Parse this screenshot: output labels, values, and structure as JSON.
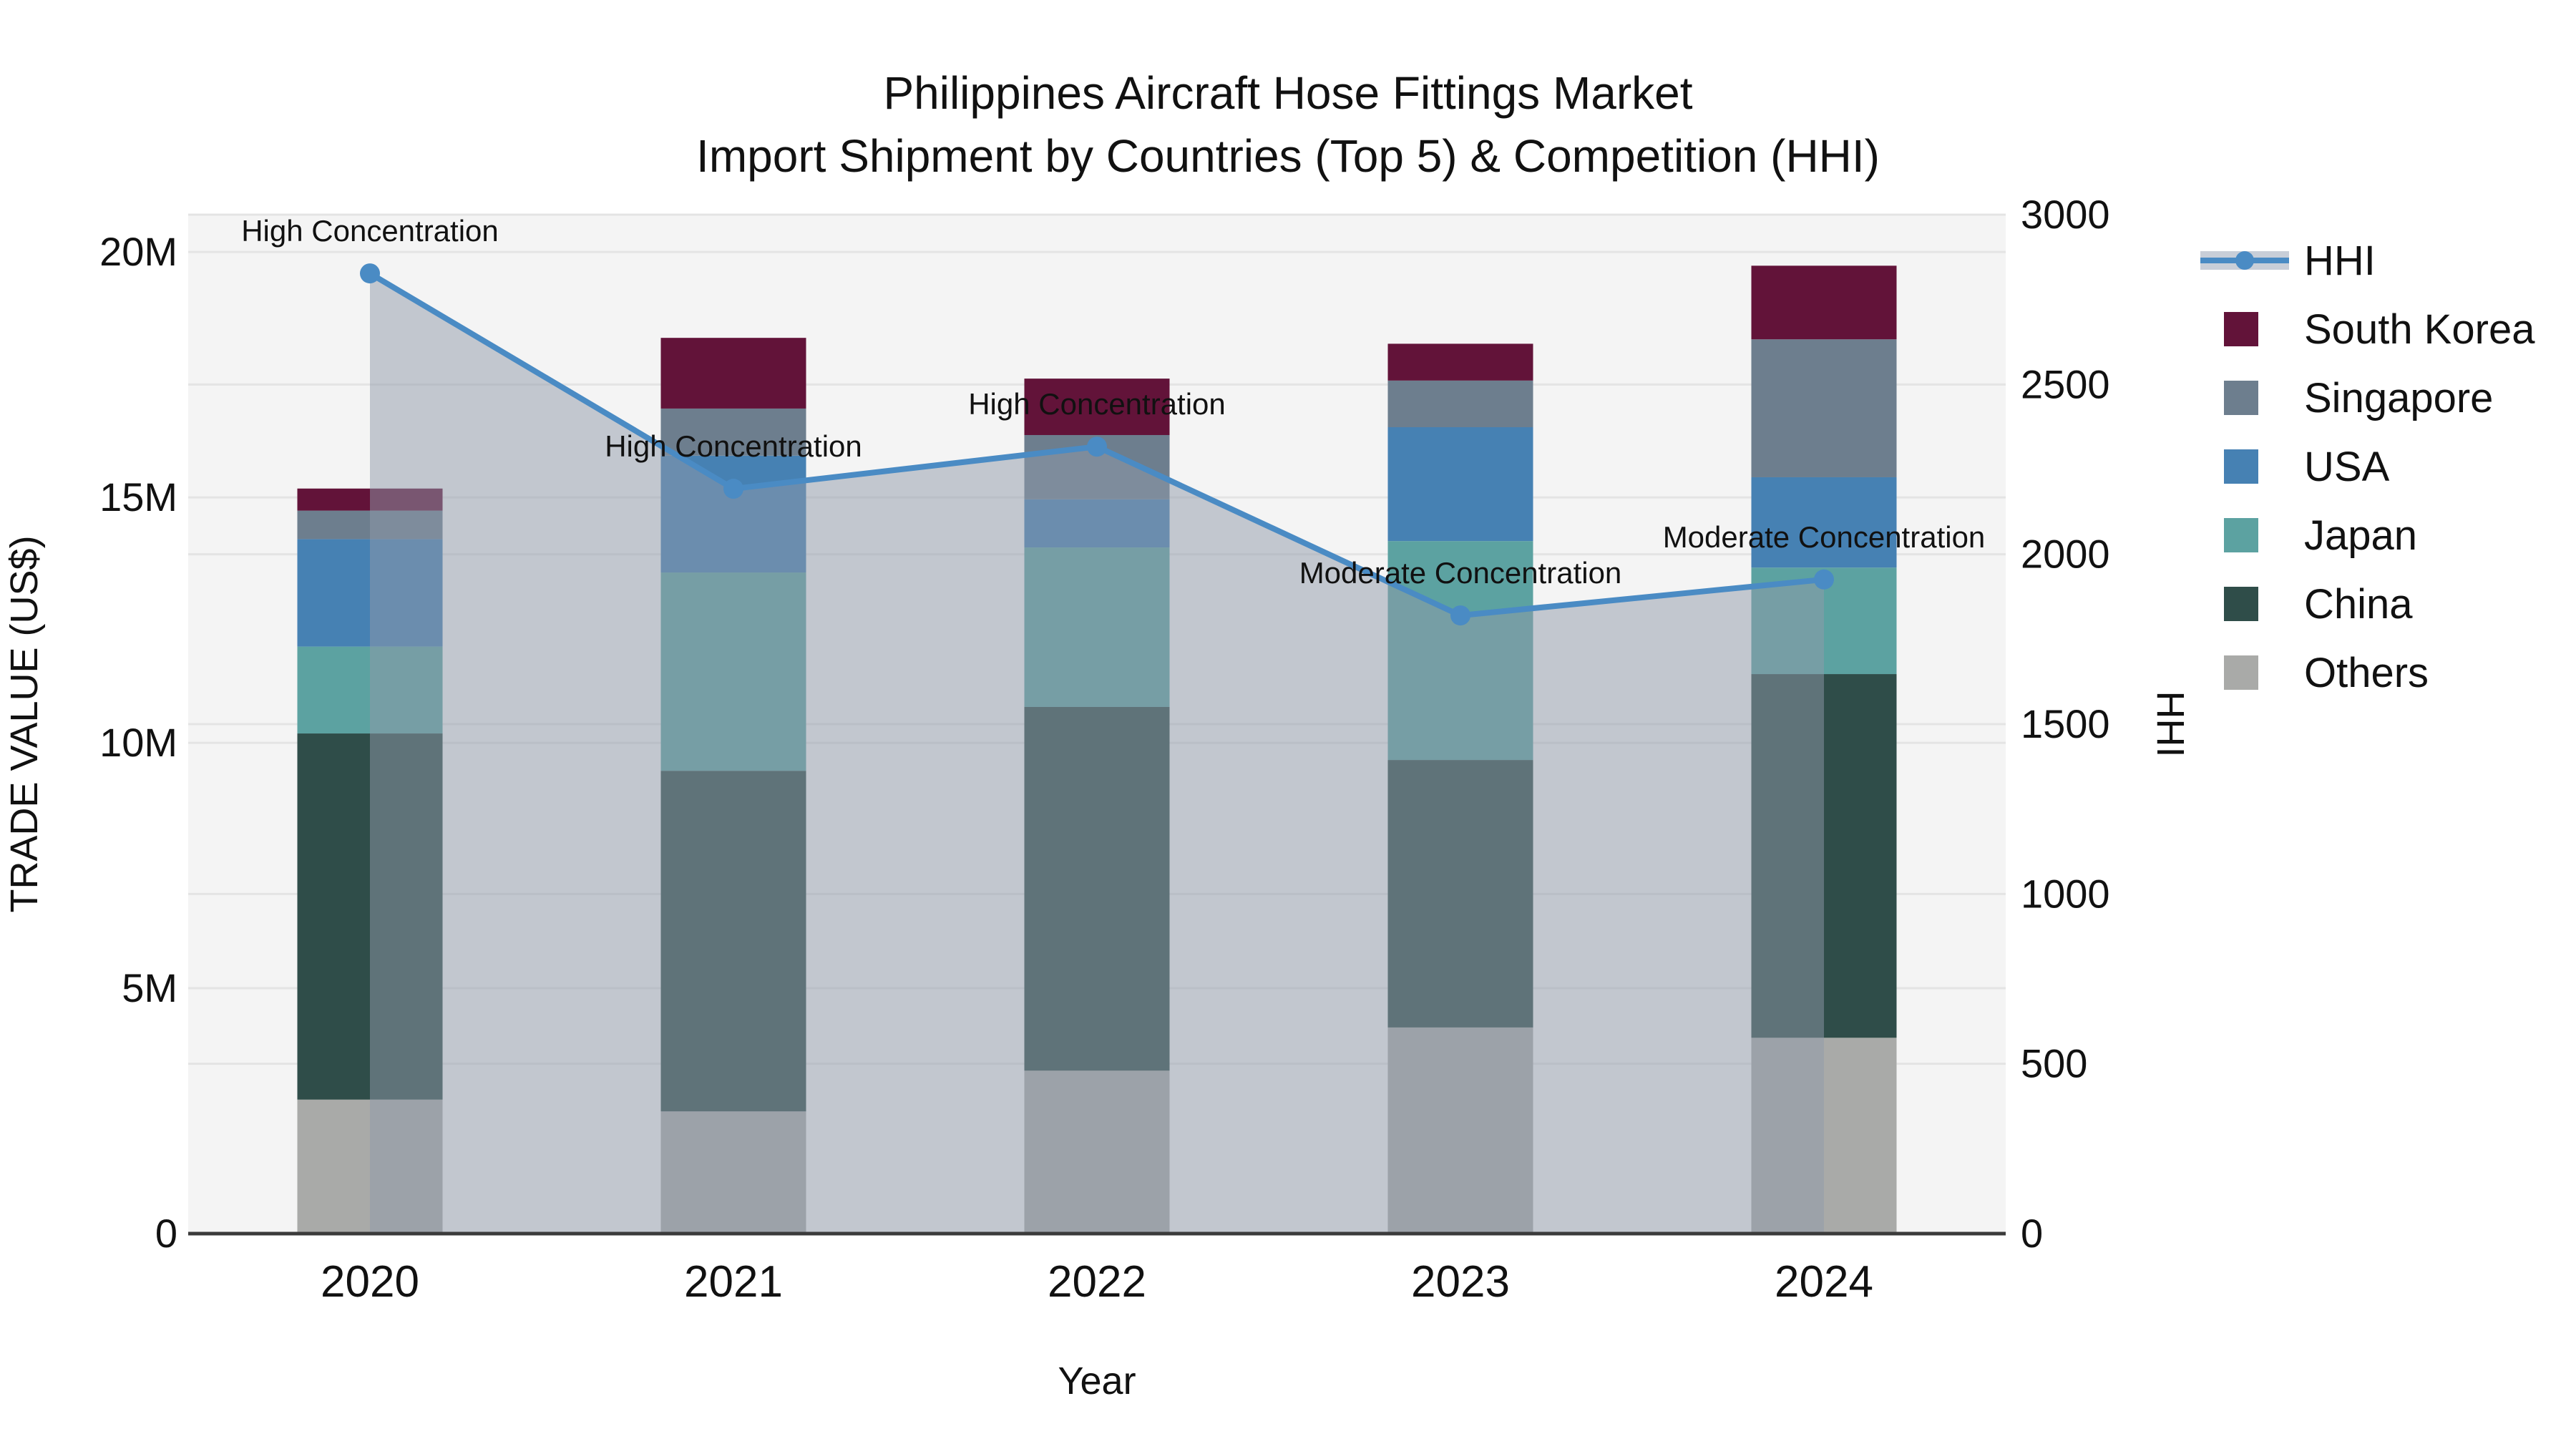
{
  "title": {
    "line1": "Philippines Aircraft Hose Fittings Market",
    "line2": "Import Shipment by Countries (Top 5) & Competition (HHI)"
  },
  "axes": {
    "x_title": "Year",
    "y_left_title": "TRADE VALUE (US$)",
    "y_right_title": "HHI",
    "y_left_ticks": [
      {
        "value": 0,
        "label": "0"
      },
      {
        "value": 5,
        "label": "5M"
      },
      {
        "value": 10,
        "label": "10M"
      },
      {
        "value": 15,
        "label": "15M"
      },
      {
        "value": 20,
        "label": "20M"
      }
    ],
    "y_right_ticks": [
      {
        "value": 0,
        "label": "0"
      },
      {
        "value": 500,
        "label": "500"
      },
      {
        "value": 1000,
        "label": "1000"
      },
      {
        "value": 1500,
        "label": "1500"
      },
      {
        "value": 2000,
        "label": "2000"
      },
      {
        "value": 2500,
        "label": "2500"
      },
      {
        "value": 3000,
        "label": "3000"
      }
    ]
  },
  "legend": {
    "items": [
      {
        "label": "HHI",
        "type": "line",
        "color": "#4A8BC4"
      },
      {
        "label": "South Korea",
        "type": "swatch",
        "color": "#621339"
      },
      {
        "label": "Singapore",
        "type": "swatch",
        "color": "#6D7E8E"
      },
      {
        "label": "USA",
        "type": "swatch",
        "color": "#4681B3"
      },
      {
        "label": "Japan",
        "type": "swatch",
        "color": "#5CA2A1"
      },
      {
        "label": "China",
        "type": "swatch",
        "color": "#2F4D49"
      },
      {
        "label": "Others",
        "type": "swatch",
        "color": "#A9AAA8"
      }
    ]
  },
  "chart_data": {
    "type": "bar",
    "subtype": "stacked bars (left axis, trade value US$ millions) + HHI line with area fill (right axis)",
    "categories": [
      "2020",
      "2021",
      "2022",
      "2023",
      "2024"
    ],
    "series": [
      {
        "name": "Others",
        "color": "#A9AAA8",
        "values": [
          2.73,
          2.49,
          3.32,
          4.2,
          3.99
        ]
      },
      {
        "name": "China",
        "color": "#2F4D49",
        "values": [
          7.46,
          6.94,
          7.41,
          5.45,
          7.41
        ]
      },
      {
        "name": "Japan",
        "color": "#5CA2A1",
        "values": [
          1.77,
          4.04,
          3.25,
          4.46,
          2.17
        ]
      },
      {
        "name": "USA",
        "color": "#4681B3",
        "values": [
          2.19,
          2.38,
          0.98,
          2.32,
          1.84
        ]
      },
      {
        "name": "Singapore",
        "color": "#6D7E8E",
        "values": [
          0.58,
          0.96,
          1.31,
          0.95,
          2.81
        ]
      },
      {
        "name": "South Korea",
        "color": "#621339",
        "values": [
          0.45,
          1.44,
          1.15,
          0.75,
          1.5
        ]
      }
    ],
    "bar_totals": [
      15.18,
      18.25,
      17.42,
      18.13,
      19.72
    ],
    "line_series": {
      "name": "HHI",
      "axis": "right",
      "color": "#4A8BC4",
      "values": [
        2827,
        2193,
        2317,
        1820,
        1926
      ]
    },
    "annotations": [
      {
        "year": "2020",
        "text": "High Concentration"
      },
      {
        "year": "2021",
        "text": "High Concentration"
      },
      {
        "year": "2022",
        "text": "High Concentration"
      },
      {
        "year": "2023",
        "text": "Moderate Concentration"
      },
      {
        "year": "2024",
        "text": "Moderate Concentration"
      }
    ],
    "xlabel": "Year",
    "ylabel": "TRADE VALUE (US$)",
    "ylabel_right": "HHI",
    "ylim_left_millions": [
      0,
      20.76
    ],
    "ylim_right": [
      0,
      3000
    ],
    "grid": true,
    "legend_position": "right"
  },
  "colors": {
    "plot_bg": "#F4F4F4",
    "grid": "#E4E4E4",
    "area_fill": "rgba(143,153,169,0.5)",
    "legend_band": "#C8CED8",
    "axis_line": "#3B3B3B",
    "text": "#111111"
  }
}
